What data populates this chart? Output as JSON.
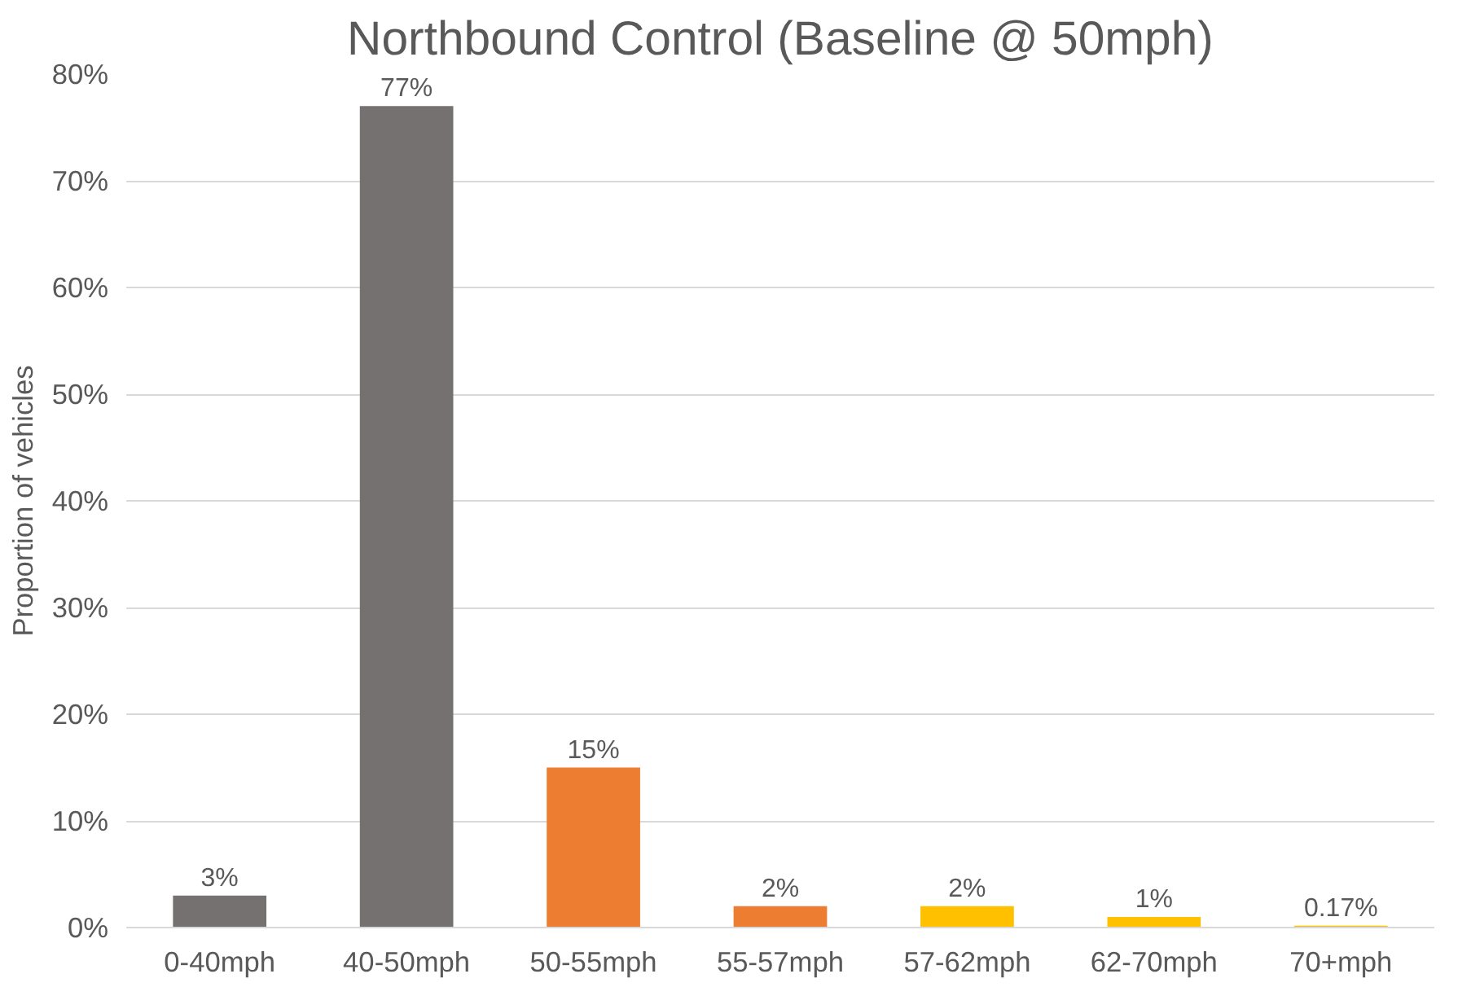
{
  "chart_data": {
    "type": "bar",
    "title": "Northbound Control (Baseline @ 50mph)",
    "ylabel": "Proportion of vehicles",
    "categories": [
      "0-40mph",
      "40-50mph",
      "50-55mph",
      "55-57mph",
      "57-62mph",
      "62-70mph",
      "70+mph"
    ],
    "values": [
      3,
      77,
      15,
      2,
      2,
      1,
      0.17
    ],
    "colors": [
      "#767171",
      "#767171",
      "#ed7d31",
      "#ed7d31",
      "#ffc000",
      "#ffc000",
      "#ffc000"
    ],
    "value_labels": [
      "3%",
      "77%",
      "15%",
      "2%",
      "2%",
      "1%",
      "0.17%"
    ],
    "ylim": [
      0,
      80
    ],
    "yticks": [
      {
        "value": 0,
        "label": "0%"
      },
      {
        "value": 10,
        "label": "10%"
      },
      {
        "value": 20,
        "label": "20%"
      },
      {
        "value": 30,
        "label": "30%"
      },
      {
        "value": 40,
        "label": "40%"
      },
      {
        "value": 50,
        "label": "50%"
      },
      {
        "value": 60,
        "label": "60%"
      },
      {
        "value": 70,
        "label": "70%"
      },
      {
        "value": 80,
        "label": "80%"
      }
    ],
    "grid": "y"
  }
}
